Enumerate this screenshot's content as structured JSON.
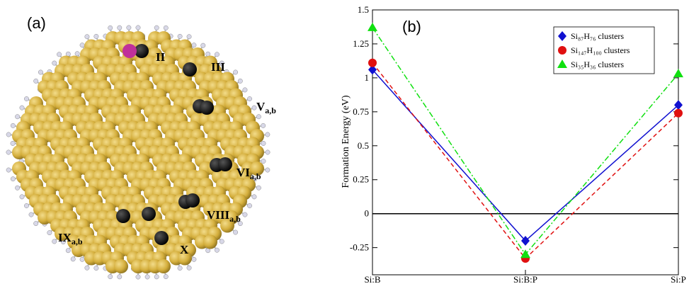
{
  "panel_a": {
    "label": "(a)",
    "sites": [
      {
        "text": "II",
        "sub": null
      },
      {
        "text": "III",
        "sub": null
      },
      {
        "text": "V",
        "sub": "a,b"
      },
      {
        "text": "VI",
        "sub": "a,b"
      },
      {
        "text": "VIII",
        "sub": "a,b"
      },
      {
        "text": "IX",
        "sub": "a,b"
      },
      {
        "text": "X",
        "sub": null
      }
    ]
  },
  "chart_data": {
    "type": "line",
    "label": "(b)",
    "ylabel": "Formation Energy (eV)",
    "categories": [
      "Si:B",
      "Si:B:P",
      "Si:P"
    ],
    "ylim": [
      -0.45,
      1.5
    ],
    "yticks": [
      -0.25,
      0,
      0.25,
      0.5,
      0.75,
      1,
      1.25,
      1.5
    ],
    "hline": 0,
    "legend": "upper right",
    "series": [
      {
        "name": "Si₈₇H₇₆ clusters",
        "color": "#1010d0",
        "marker": "diamond",
        "dash": "none",
        "values": [
          1.06,
          -0.2,
          0.8
        ]
      },
      {
        "name": "Si₁₄₇H₁₀₀ clusters",
        "color": "#e01010",
        "marker": "circle",
        "dash": "6,4",
        "values": [
          1.11,
          -0.33,
          0.74
        ]
      },
      {
        "name": "Si₃₅H₃₆ clusters",
        "color": "#10e010",
        "marker": "triangle",
        "dash": "8,3,2,3",
        "values": [
          1.37,
          -0.3,
          1.03
        ]
      }
    ]
  }
}
